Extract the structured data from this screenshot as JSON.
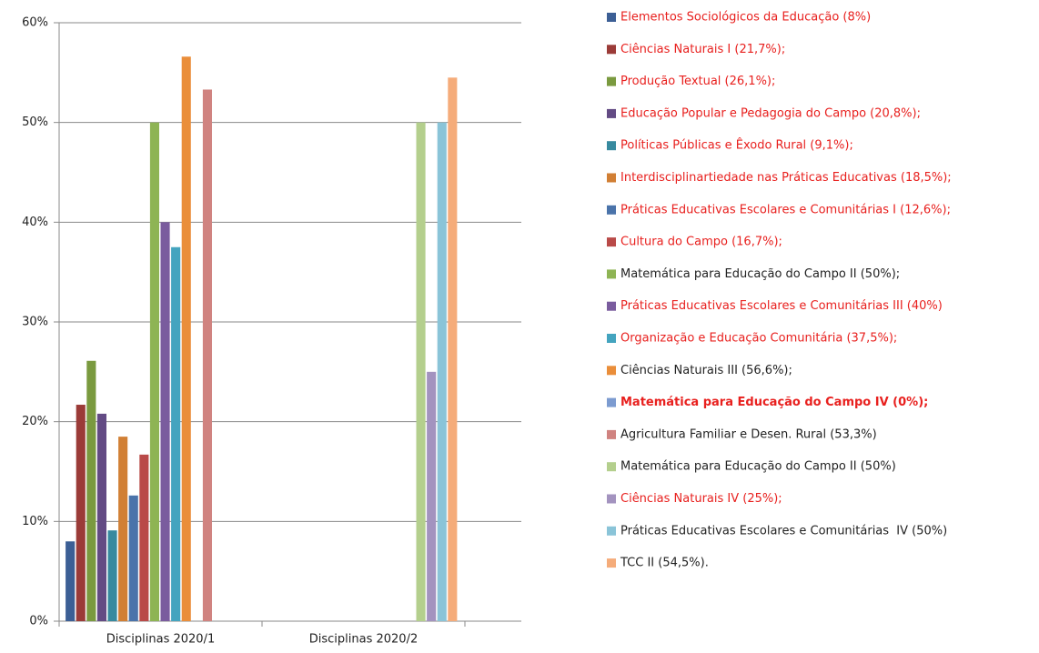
{
  "chart_data": {
    "type": "bar",
    "categories": [
      "Disciplinas 2020/1",
      "Disciplinas 2020/2"
    ],
    "ylim": [
      0,
      60
    ],
    "yticks": [
      {
        "value": 0,
        "label": "0%"
      },
      {
        "value": 10,
        "label": "10%"
      },
      {
        "value": 20,
        "label": "20%"
      },
      {
        "value": 30,
        "label": "30%"
      },
      {
        "value": 40,
        "label": "40%"
      },
      {
        "value": 50,
        "label": "50%"
      },
      {
        "value": 60,
        "label": "60%"
      }
    ],
    "grid": true,
    "legend": "right",
    "series": [
      {
        "name": "Elementos Sociológicos da Educação (8%)",
        "color": "#3c5f95",
        "label_color": "#e8201e",
        "values": [
          8,
          null
        ]
      },
      {
        "name": "Ciências Naturais I (21,7%);",
        "color": "#9b3b38",
        "label_color": "#e8201e",
        "values": [
          21.7,
          null
        ]
      },
      {
        "name": "Produção Textual (26,1%);",
        "color": "#7a9a3f",
        "label_color": "#e8201e",
        "values": [
          26.1,
          null
        ]
      },
      {
        "name": "Educação Popular e Pedagogia do Campo (20,8%);",
        "color": "#634b84",
        "label_color": "#e8201e",
        "values": [
          20.8,
          null
        ]
      },
      {
        "name": "Políticas Públicas e Êxodo Rural (9,1%);",
        "color": "#378a9f",
        "label_color": "#e8201e",
        "values": [
          9.1,
          null
        ]
      },
      {
        "name": "Interdisciplinartiedade nas Práticas Educativas (18,5%);",
        "color": "#d17f34",
        "label_color": "#e8201e",
        "values": [
          18.5,
          null
        ]
      },
      {
        "name": "Práticas Educativas Escolares e Comunitárias I (12,6%);",
        "color": "#4a73aa",
        "label_color": "#e8201e",
        "values": [
          12.6,
          null
        ]
      },
      {
        "name": "Cultura do Campo (16,7%);",
        "color": "#b94a48",
        "label_color": "#e8201e",
        "values": [
          16.7,
          null
        ]
      },
      {
        "name": "Matemática para Educação do Campo II (50%);",
        "color": "#8eb454",
        "label_color": "#222222",
        "values": [
          50,
          null
        ]
      },
      {
        "name": "Práticas Educativas Escolares e Comunitárias III (40%)",
        "color": "#7a5c9e",
        "label_color": "#e8201e",
        "values": [
          40,
          null
        ]
      },
      {
        "name": "Organização e Educação Comunitária (37,5%);",
        "color": "#44a4bf",
        "label_color": "#e8201e",
        "values": [
          37.5,
          null
        ]
      },
      {
        "name": "Ciências Naturais III (56,6%);",
        "color": "#ea8e3a",
        "label_color": "#222222",
        "values": [
          56.6,
          null
        ]
      },
      {
        "name": "Matemática para Educação do Campo IV (0%);",
        "color": "#7c9bd0",
        "label_color": "#e8201e",
        "label_bold": true,
        "values": [
          0,
          null
        ]
      },
      {
        "name": "Agricultura Familiar e Desen. Rural (53,3%)",
        "color": "#d08380",
        "label_color": "#222222",
        "values": [
          53.3,
          null
        ]
      },
      {
        "name": "Matemática para Educação do Campo II (50%)",
        "color": "#b4cf8d",
        "label_color": "#222222",
        "values": [
          null,
          50
        ]
      },
      {
        "name": "Ciências Naturais IV (25%);",
        "color": "#a393bf",
        "label_color": "#e8201e",
        "values": [
          null,
          25
        ]
      },
      {
        "name": "Práticas Educativas Escolares e Comunitárias  IV (50%)",
        "color": "#8ac4d8",
        "label_color": "#222222",
        "values": [
          null,
          50
        ]
      },
      {
        "name": "TCC II (54,5%).",
        "color": "#f5ac7a",
        "label_color": "#222222",
        "values": [
          null,
          54.5
        ]
      }
    ]
  }
}
